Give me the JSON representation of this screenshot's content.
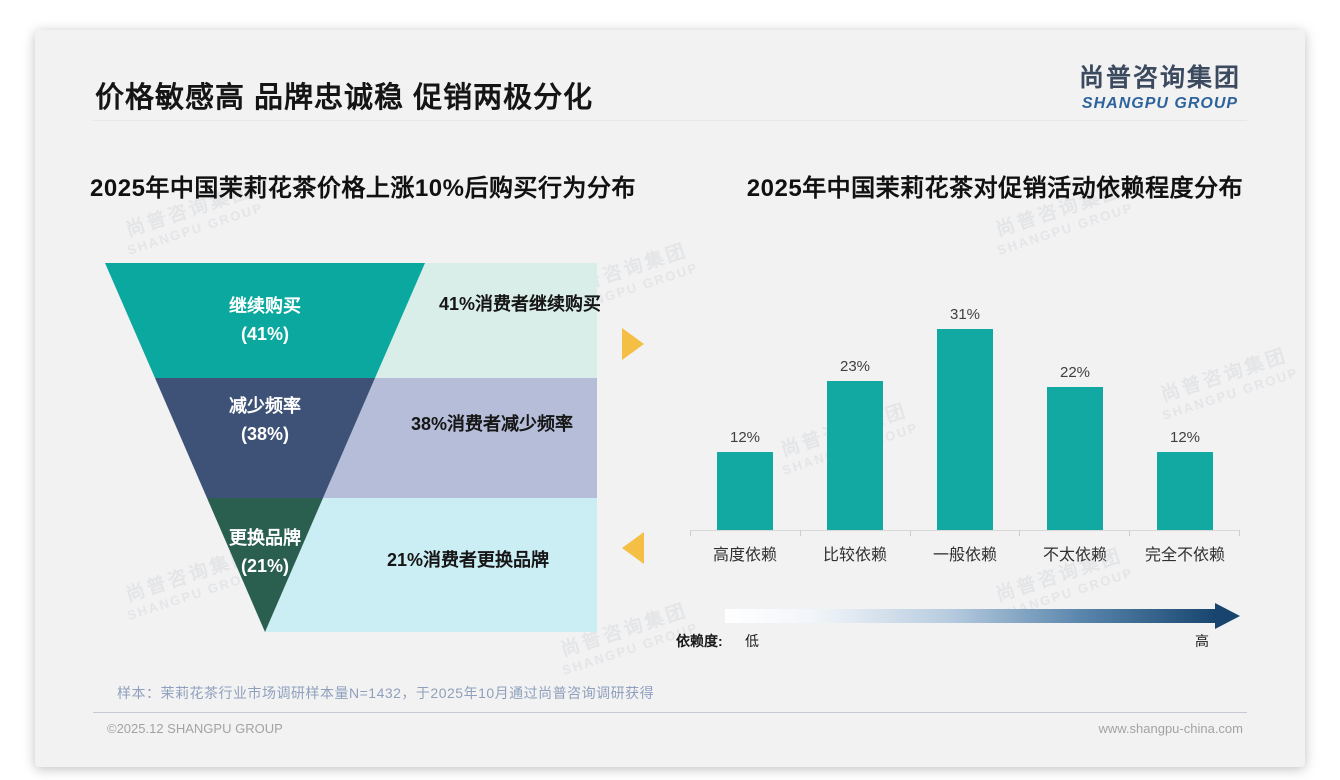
{
  "header": {
    "title": "价格敏感高 品牌忠诚稳 促销两极分化",
    "logo_cn": "尚普咨询集团",
    "logo_en": "SHANGPU GROUP"
  },
  "watermark": {
    "line1": "尚普咨询集团",
    "line2": "SHANGPU GROUP"
  },
  "chart_data": [
    {
      "type": "funnel",
      "title": "2025年中国茉莉花茶价格上涨10%后购买行为分布",
      "categories": [
        "继续购买",
        "减少频率",
        "更换品牌"
      ],
      "values": [
        41,
        38,
        21
      ],
      "value_labels": [
        "(41%)",
        "(38%)",
        "(21%)"
      ],
      "annotations": [
        "41%消费者继续购买",
        "38%消费者减少频率",
        "21%消费者更换品牌"
      ],
      "segment_colors": [
        "#0aa89e",
        "#3e5277",
        "#2a5f50"
      ],
      "panel_colors": [
        "#daeee9",
        "#b5bdd8",
        "#cbedf4"
      ]
    },
    {
      "type": "bar",
      "title": "2025年中国茉莉花茶对促销活动依赖程度分布",
      "categories": [
        "高度依赖",
        "比较依赖",
        "一般依赖",
        "不太依赖",
        "完全不依赖"
      ],
      "values": [
        12,
        23,
        31,
        22,
        12
      ],
      "value_labels": [
        "12%",
        "23%",
        "31%",
        "22%",
        "12%"
      ],
      "unit": "%",
      "ylim": [
        0,
        35
      ],
      "grid": false,
      "bar_color": "#12a9a2"
    }
  ],
  "legend_arrow": {
    "label": "依赖度:",
    "low": "低",
    "high": "高"
  },
  "footnote": "样本：茉莉花茶行业市场调研样本量N=1432，于2025年10月通过尚普咨询调研获得",
  "footer": {
    "left": "©2025.12 SHANGPU GROUP",
    "right": "www.shangpu-china.com"
  },
  "colors": {
    "accent_teal": "#12a9a2",
    "accent_yellow": "#f5be45",
    "arrow_dark": "#17456e"
  }
}
